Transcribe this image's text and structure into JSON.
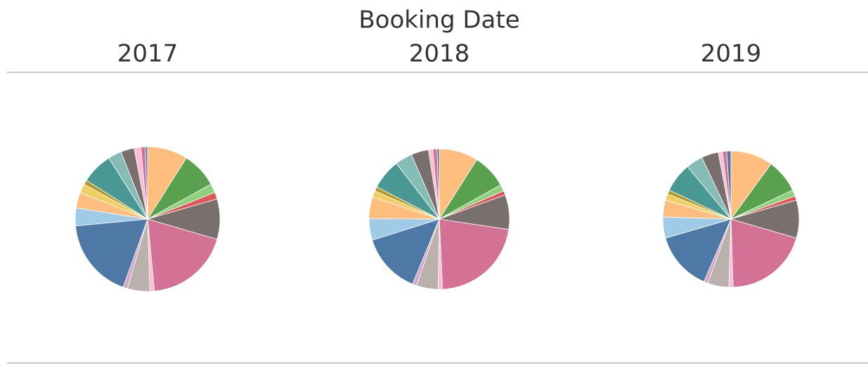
{
  "header": "Booking Date",
  "chart_data": [
    {
      "type": "pie",
      "title": "2017",
      "categories": [
        null,
        null,
        null,
        null,
        null,
        null,
        null,
        null,
        null,
        null,
        null,
        null,
        null,
        null,
        null,
        null,
        null,
        null,
        null,
        null
      ],
      "values": [
        9,
        8,
        2,
        1.5,
        9,
        19,
        1,
        5,
        1,
        18,
        4,
        3.5,
        2,
        1,
        7,
        3,
        3,
        1.5,
        1,
        0.5
      ],
      "colors": [
        "#ffbe7d",
        "#59a14f",
        "#8cd17d",
        "#e15759",
        "#79706e",
        "#d37295",
        "#fabfd2",
        "#bab0ac",
        "#d4a6c8",
        "#4e79a7",
        "#a0cbe8",
        "#ffbe7d",
        "#f1ce63",
        "#b6992d",
        "#499894",
        "#86bcb6",
        "#79706e",
        "#fabfd2",
        "#d37295",
        "#4e79a7"
      ]
    },
    {
      "type": "pie",
      "title": "2018",
      "categories": [
        null,
        null,
        null,
        null,
        null,
        null,
        null,
        null,
        null,
        null,
        null,
        null,
        null,
        null,
        null,
        null,
        null,
        null,
        null,
        null
      ],
      "values": [
        9,
        8,
        1.5,
        1,
        8,
        22,
        1,
        5,
        1,
        14,
        5,
        5,
        1.5,
        1,
        7,
        4,
        4,
        1,
        1,
        0.5
      ],
      "colors": [
        "#ffbe7d",
        "#59a14f",
        "#8cd17d",
        "#e15759",
        "#79706e",
        "#d37295",
        "#fabfd2",
        "#bab0ac",
        "#d4a6c8",
        "#4e79a7",
        "#a0cbe8",
        "#ffbe7d",
        "#f1ce63",
        "#b6992d",
        "#499894",
        "#86bcb6",
        "#79706e",
        "#fabfd2",
        "#d37295",
        "#4e79a7"
      ]
    },
    {
      "type": "pie",
      "title": "2019",
      "categories": [
        null,
        null,
        null,
        null,
        null,
        null,
        null,
        null,
        null,
        null,
        null,
        null,
        null,
        null,
        null,
        null,
        null,
        null,
        null,
        null
      ],
      "values": [
        10,
        8,
        1.5,
        1,
        9,
        20,
        1,
        5,
        1,
        14,
        5,
        4,
        1.5,
        1,
        7,
        4,
        4,
        1,
        1,
        1
      ],
      "colors": [
        "#ffbe7d",
        "#59a14f",
        "#8cd17d",
        "#e15759",
        "#79706e",
        "#d37295",
        "#fabfd2",
        "#bab0ac",
        "#d4a6c8",
        "#4e79a7",
        "#a0cbe8",
        "#ffbe7d",
        "#f1ce63",
        "#b6992d",
        "#499894",
        "#86bcb6",
        "#79706e",
        "#fabfd2",
        "#d37295",
        "#4e79a7"
      ]
    }
  ]
}
